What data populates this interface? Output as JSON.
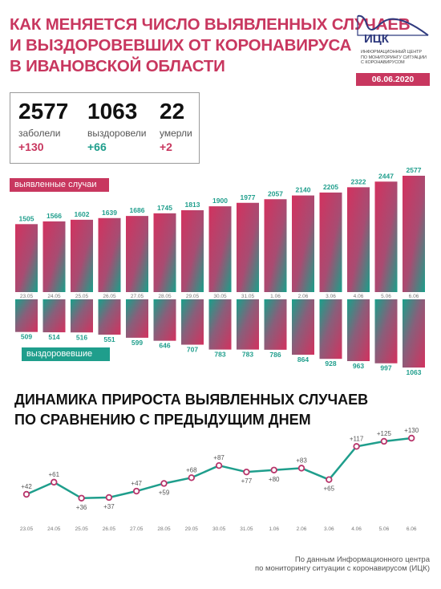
{
  "header": {
    "title_lines": [
      "КАК МЕНЯЕТСЯ ЧИСЛО ВЫЯВЛЕННЫХ СЛУЧАЕВ",
      "И ВЫЗДОРОВЕВШИХ ОТ КОРОНАВИРУСА",
      "В ИВАНОВСКОЙ ОБЛАСТИ"
    ],
    "logo_name": "ИЦК",
    "logo_sub_lines": [
      "ИНФОРМАЦИОННЫЙ ЦЕНТР",
      "ПО МОНИТОРИНГУ СИТУАЦИИ",
      "С КОРОНАВИРУСОМ"
    ],
    "date": "06.06.2020"
  },
  "stats": [
    {
      "value": "2577",
      "label": "заболели",
      "delta": "+130",
      "color": "#c8375f"
    },
    {
      "value": "1063",
      "label": "выздоровели",
      "delta": "+66",
      "color": "#1f9e8c"
    },
    {
      "value": "22",
      "label": "умерли",
      "delta": "+2",
      "color": "#c8375f"
    }
  ],
  "colors": {
    "accent": "#c8375f",
    "teal": "#1f9e8c"
  },
  "chart_data": [
    {
      "type": "bar",
      "legend_label": "выявленные случаи",
      "categories": [
        "23.05",
        "24.05",
        "25.05",
        "26.05",
        "27.05",
        "28.05",
        "29.05",
        "30.05",
        "31.05",
        "1.06",
        "2.06",
        "3.06",
        "4.06",
        "5.06",
        "6.06"
      ],
      "values": [
        1505,
        1566,
        1602,
        1639,
        1686,
        1745,
        1813,
        1900,
        1977,
        2057,
        2140,
        2205,
        2322,
        2447,
        2577
      ]
    },
    {
      "type": "bar",
      "legend_label": "выздоровевшие",
      "categories": [
        "23.05",
        "24.05",
        "25.05",
        "26.05",
        "27.05",
        "28.05",
        "29.05",
        "30.05",
        "31.05",
        "1.06",
        "2.06",
        "3.06",
        "4.06",
        "5.06",
        "6.06"
      ],
      "values": [
        509,
        514,
        516,
        551,
        599,
        646,
        707,
        783,
        783,
        786,
        864,
        928,
        963,
        997,
        1063
      ]
    },
    {
      "type": "line",
      "title_lines": [
        "ДИНАМИКА ПРИРОСТА ВЫЯВЛЕННЫХ СЛУЧАЕВ",
        "ПО СРАВНЕНИЮ С ПРЕДЫДУЩИМ ДНЕМ"
      ],
      "categories": [
        "23.05",
        "24.05",
        "25.05",
        "26.05",
        "27.05",
        "28.05",
        "29.05",
        "30.05",
        "31.05",
        "1.06",
        "2.06",
        "3.06",
        "4.06",
        "5.06",
        "6.06"
      ],
      "values": [
        42,
        61,
        36,
        37,
        47,
        59,
        68,
        87,
        77,
        80,
        83,
        65,
        117,
        125,
        130
      ],
      "labels": [
        "+42",
        "+61",
        "+36",
        "+37",
        "+47",
        "+59",
        "+68",
        "+87",
        "+77",
        "+80",
        "+83",
        "+65",
        "+117",
        "+125",
        "+130"
      ]
    }
  ],
  "footer": {
    "source_lines": [
      "По данным Информационного центра",
      "по мониторингу ситуации с коронавирусом (ИЦК)"
    ]
  }
}
